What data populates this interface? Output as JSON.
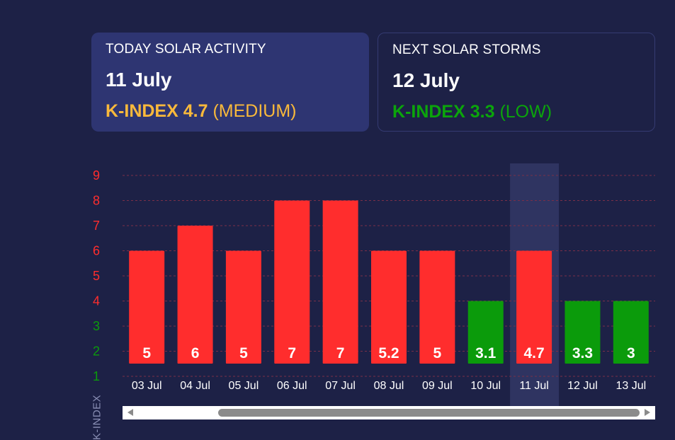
{
  "today": {
    "heading": "TODAY SOLAR ACTIVITY",
    "date": "11 July",
    "index_value": "K-INDEX 4.7",
    "index_level": "(MEDIUM)",
    "color": "#f9b93b"
  },
  "next": {
    "heading": "NEXT SOLAR STORMS",
    "date": "12 July",
    "index_value": "K-INDEX 3.3",
    "index_level": "(LOW)",
    "color": "#0ba50b"
  },
  "colors": {
    "high": "#ff2d2d",
    "low": "#0b9b0b",
    "medium_tick": "#f9b93b",
    "highlight": "#2f3461"
  },
  "chart_data": {
    "type": "bar",
    "categories": [
      "03 Jul",
      "04 Jul",
      "05 Jul",
      "06 Jul",
      "07 Jul",
      "08 Jul",
      "09 Jul",
      "10 Jul",
      "11 Jul",
      "12 Jul",
      "13 Jul"
    ],
    "values": [
      5,
      6,
      5,
      7,
      7,
      5.2,
      5,
      3.1,
      4.7,
      3.3,
      3
    ],
    "labels": [
      "5",
      "6",
      "5",
      "7",
      "7",
      "5.2",
      "5",
      "3.1",
      "4.7",
      "3.3",
      "3"
    ],
    "bar_heights": [
      5,
      6,
      5,
      7,
      7,
      5,
      5,
      3,
      5,
      3,
      3
    ],
    "bar_levels": [
      "high",
      "high",
      "high",
      "high",
      "high",
      "high",
      "high",
      "low",
      "high",
      "low",
      "low"
    ],
    "highlighted_category": "11 Jul",
    "y_ticks": [
      "1",
      "2",
      "3",
      "4",
      "5",
      "6",
      "7",
      "8",
      "9"
    ],
    "y_tick_levels": [
      "low",
      "low",
      "low",
      "medium",
      "high",
      "high",
      "high",
      "high",
      "high"
    ],
    "ylabel": "K-INDEX",
    "xlabel": "",
    "ylim": [
      1,
      9
    ],
    "grid": true
  }
}
